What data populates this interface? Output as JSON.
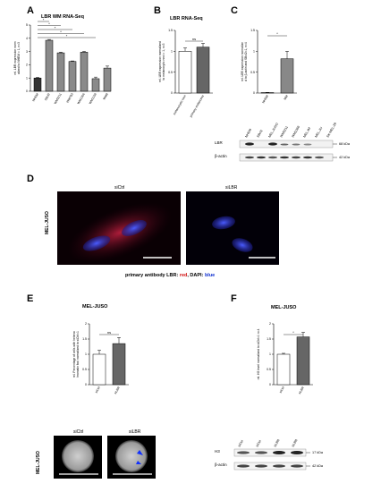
{
  "panels": {
    "A": {
      "label": "A",
      "title": "LBR WM RNA-Seq"
    },
    "B": {
      "label": "B",
      "title": "LBR RNA-Seq"
    },
    "C": {
      "label": "C"
    },
    "D": {
      "label": "D",
      "row_label": "MEL-JUSO",
      "left_title": "siCtrl",
      "right_title": "siLBR",
      "caption_prefix": "primary antibody LBR: ",
      "caption_red": "red",
      "caption_mid": ", DAPI: ",
      "caption_blue": "blue"
    },
    "E": {
      "label": "E",
      "title": "MEL-JUSO",
      "row_label": "MEL-JUSO",
      "left_title": "siCtrl",
      "right_title": "siLBR"
    },
    "F": {
      "label": "F",
      "title": "MEL-JUSO"
    },
    "blot_C": {
      "lanes": [
        "NHEM",
        "SBcl2",
        "MEL-JUSO",
        "WM3211",
        "WM1366",
        "MEL-IM",
        "MEL-JU",
        "SK-MEL-28"
      ],
      "rows": [
        "LBR",
        "β-actin"
      ],
      "sizes": [
        "68 kDa",
        "42 kDa"
      ]
    },
    "blot_F": {
      "lanes": [
        "siCtrl",
        "siCtrl",
        "siLBR",
        "siLBR"
      ],
      "rows": [
        "H3",
        "β-actin"
      ],
      "sizes": [
        "17 kDa",
        "42 kDa"
      ]
    }
  },
  "chart_data": [
    {
      "type": "bar",
      "panel": "A",
      "title": "LBR WM RNA-Seq",
      "ylabel": "rel. LBR expression normalized to NHEM = 1, n=3",
      "categories": [
        "NHEM",
        "SBcl2",
        "WM3211",
        "WM793",
        "WM1366",
        "WM1158",
        "WM9"
      ],
      "values": [
        1.0,
        3.85,
        2.9,
        2.25,
        2.95,
        0.95,
        1.75
      ],
      "errors": [
        0.05,
        0.06,
        0.05,
        0.04,
        0.06,
        0.12,
        0.15
      ],
      "colors": [
        "#333333",
        "#8a8a8a",
        "#8a8a8a",
        "#8a8a8a",
        "#8a8a8a",
        "#8a8a8a",
        "#8a8a8a"
      ],
      "ylim": [
        0,
        5
      ],
      "yticks": [
        0,
        1,
        2,
        3,
        4,
        5
      ],
      "significance": [
        "*",
        "*",
        "*",
        "*",
        "*"
      ]
    },
    {
      "type": "bar",
      "panel": "B",
      "title": "LBR RNA-Seq",
      "ylabel": "rel. LBR expression normalized to melanocytic nevi = 1, n=3",
      "categories": [
        "melanocytic nevi",
        "primary melanoma"
      ],
      "values": [
        1.0,
        1.1
      ],
      "errors": [
        0.08,
        0.09
      ],
      "colors": [
        "#ffffff",
        "#666666"
      ],
      "ylim": [
        0,
        1.5
      ],
      "yticks": [
        0.0,
        0.5,
        1.0,
        1.5
      ],
      "significance": [
        "ns"
      ]
    },
    {
      "type": "bar",
      "panel": "C",
      "ylabel": "rel. LBR expression normalized to β-actin and SBcl2=1, n=4",
      "categories": [
        "NHEM",
        "MM"
      ],
      "values": [
        0.01,
        0.82
      ],
      "errors": [
        0.005,
        0.18
      ],
      "colors": [
        "#333333",
        "#888888"
      ],
      "ylim": [
        0,
        1.5
      ],
      "yticks": [
        0.0,
        0.5,
        1.0,
        1.5
      ],
      "significance": [
        "*"
      ]
    },
    {
      "type": "bar",
      "panel": "E",
      "title": "MEL-JUSO",
      "ylabel": "rel. Percentage of cells with heterochromatin foci normalized to siCtrl=1",
      "categories": [
        "siCtrl",
        "siLBR"
      ],
      "values": [
        1.0,
        1.35
      ],
      "errors": [
        0.13,
        0.2
      ],
      "colors": [
        "#ffffff",
        "#666666"
      ],
      "ylim": [
        0,
        2.0
      ],
      "yticks": [
        0.0,
        0.5,
        1.0,
        1.5,
        2.0
      ],
      "significance": [
        "ns"
      ]
    },
    {
      "type": "bar",
      "panel": "F",
      "title": "MEL-JUSO",
      "ylabel": "rel. H3 level normalized to siCtrl=1 n=4",
      "categories": [
        "siCtrl",
        "siLBR"
      ],
      "values": [
        1.0,
        1.57
      ],
      "errors": [
        0.03,
        0.15
      ],
      "colors": [
        "#ffffff",
        "#666666"
      ],
      "ylim": [
        0,
        2.0
      ],
      "yticks": [
        0.0,
        0.5,
        1.0,
        1.5,
        2.0
      ],
      "significance": [
        "*"
      ]
    }
  ]
}
